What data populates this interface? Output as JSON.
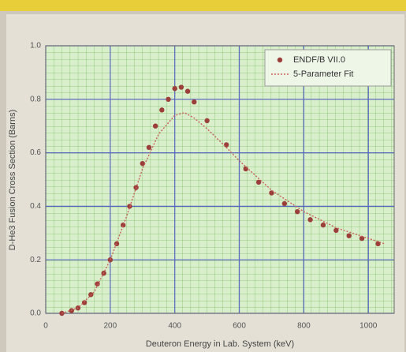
{
  "chart_data": {
    "type": "scatter",
    "x_label": "Deuteron Energy in Lab. System (keV)",
    "y_label": "D-He3 Fusion Cross Section (Barns)",
    "xlim": [
      0,
      1080
    ],
    "ylim": [
      0,
      1.0
    ],
    "xticks": [
      0,
      200,
      400,
      600,
      800,
      1000
    ],
    "yticks": [
      {
        "value": 0,
        "label": "0.0"
      },
      0.2,
      0.4,
      0.6,
      0.8,
      {
        "value": 1.0,
        "label": "1.0"
      }
    ],
    "grid": true,
    "legend": "upper right",
    "series": [
      {
        "name": "ENDF/B VII.0",
        "type": "scatter",
        "color": "#9c3f3a",
        "x": [
          50,
          80,
          100,
          120,
          140,
          160,
          180,
          200,
          220,
          240,
          260,
          280,
          300,
          320,
          340,
          360,
          380,
          400,
          420,
          440,
          460,
          500,
          560,
          620,
          660,
          700,
          740,
          780,
          820,
          860,
          900,
          940,
          980,
          1030
        ],
        "values": [
          0.0,
          0.01,
          0.02,
          0.04,
          0.07,
          0.11,
          0.15,
          0.2,
          0.26,
          0.33,
          0.4,
          0.47,
          0.56,
          0.62,
          0.7,
          0.76,
          0.8,
          0.84,
          0.845,
          0.83,
          0.79,
          0.72,
          0.63,
          0.54,
          0.49,
          0.45,
          0.41,
          0.38,
          0.35,
          0.33,
          0.31,
          0.29,
          0.28,
          0.26
        ]
      },
      {
        "name": "5-Parameter Fit",
        "type": "line",
        "color": "#c8605a",
        "x": [
          50,
          100,
          150,
          200,
          250,
          300,
          350,
          400,
          430,
          460,
          500,
          560,
          600,
          700,
          800,
          900,
          1000,
          1050
        ],
        "values": [
          0.0,
          0.02,
          0.08,
          0.2,
          0.36,
          0.54,
          0.67,
          0.74,
          0.75,
          0.73,
          0.69,
          0.62,
          0.57,
          0.46,
          0.38,
          0.32,
          0.28,
          0.26
        ]
      }
    ]
  }
}
